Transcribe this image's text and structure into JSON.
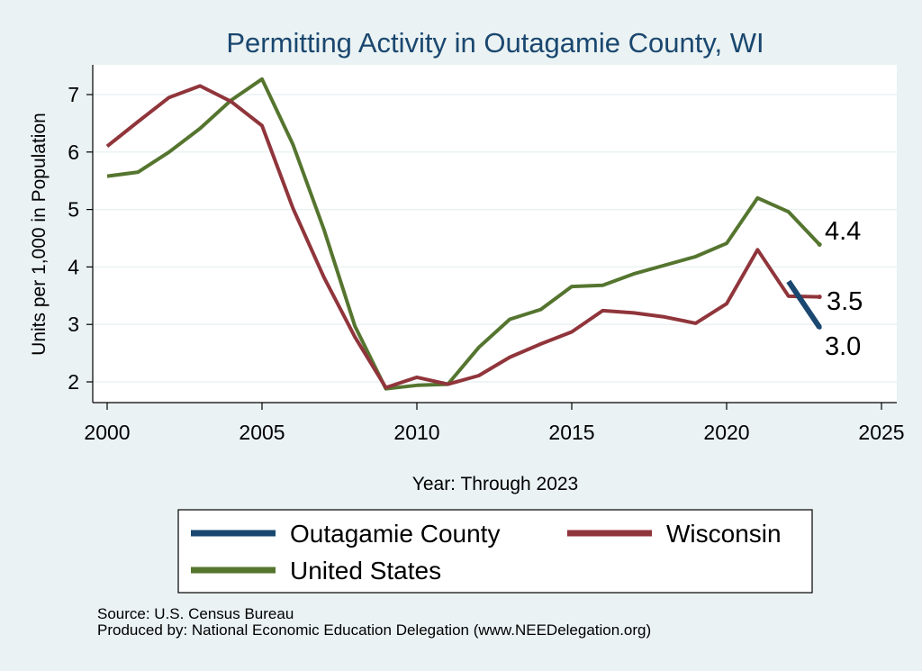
{
  "chart_data": {
    "type": "line",
    "title": "Permitting Activity in Outagamie County, WI",
    "xlabel": "Year: Through 2023",
    "ylabel": "Units per 1,000 in Population",
    "xlim": [
      2000,
      2025
    ],
    "ylim": [
      2,
      7
    ],
    "xticks": [
      "2000",
      "2005",
      "2010",
      "2015",
      "2020",
      "2025"
    ],
    "yticks": [
      "2",
      "3",
      "4",
      "5",
      "6",
      "7"
    ],
    "grid": "horizontal",
    "legend_position": "bottom",
    "series": [
      {
        "name": "Outagamie County",
        "color": "#1a476f",
        "x": [
          2022,
          2023
        ],
        "y": [
          3.75,
          2.95
        ],
        "end_label": "3.0"
      },
      {
        "name": "Wisconsin",
        "color": "#90353b",
        "x": [
          2000,
          2001,
          2002,
          2003,
          2004,
          2005,
          2006,
          2007,
          2008,
          2009,
          2010,
          2011,
          2012,
          2013,
          2014,
          2015,
          2016,
          2017,
          2018,
          2019,
          2020,
          2021,
          2022,
          2023
        ],
        "y": [
          6.1,
          6.53,
          6.95,
          7.15,
          6.88,
          6.46,
          5.02,
          3.82,
          2.78,
          1.9,
          2.08,
          1.96,
          2.11,
          2.43,
          2.66,
          2.87,
          3.24,
          3.2,
          3.13,
          3.02,
          3.36,
          4.3,
          3.49,
          3.48
        ],
        "end_label": "3.5"
      },
      {
        "name": "United States",
        "color": "#55752f",
        "x": [
          2000,
          2001,
          2002,
          2003,
          2004,
          2005,
          2006,
          2007,
          2008,
          2009,
          2010,
          2011,
          2012,
          2013,
          2014,
          2015,
          2016,
          2017,
          2018,
          2019,
          2020,
          2021,
          2022,
          2023
        ],
        "y": [
          5.58,
          5.65,
          6.0,
          6.41,
          6.9,
          7.27,
          6.13,
          4.65,
          2.97,
          1.88,
          1.94,
          1.96,
          2.6,
          3.09,
          3.26,
          3.66,
          3.68,
          3.88,
          4.03,
          4.18,
          4.41,
          5.2,
          4.96,
          4.39
        ],
        "end_label": "4.4"
      }
    ],
    "legend": [
      "Outagamie County",
      "Wisconsin",
      "United States"
    ]
  },
  "notes": {
    "source": "Source: U.S. Census Bureau",
    "produced_by": "Produced by: National Economic Education Delegation (www.NEEDelegation.org)"
  }
}
